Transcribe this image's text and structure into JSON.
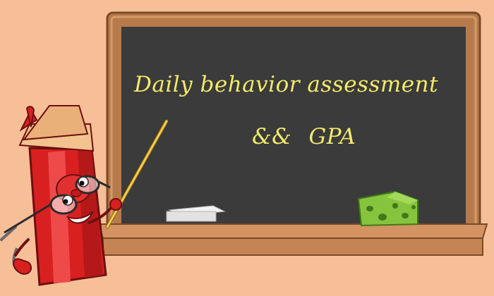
{
  "board": {
    "title": "Daily behavior assessment",
    "subtitle": "&&   GPA"
  },
  "colors": {
    "background": "#f7bf98",
    "frame": "#b67a4b",
    "board": "#3b3b3b",
    "chalk_text": "#f2ea6b"
  },
  "illustration": {
    "character": "pencil-mascot",
    "props": [
      "chalk-eraser",
      "sponge",
      "pointer-stick",
      "glasses"
    ]
  }
}
